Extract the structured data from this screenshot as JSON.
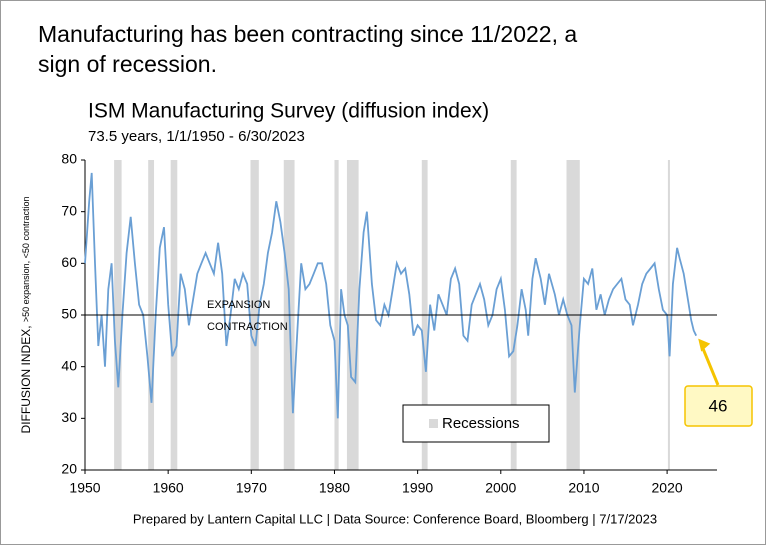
{
  "chart_data": {
    "type": "line",
    "headline": "Manufacturing has been contracting since 11/2022, a sign of recession.",
    "title": "ISM Manufacturing Survey (diffusion index)",
    "subtitle": "73.5 years, 1/1/1950 - 6/30/2023",
    "ylabel": "DIFFUSION INDEX, ",
    "ylabel_note": ">50 expansion, <50 contraction",
    "source": "Prepared by Lantern Capital LLC | Data Source: Conference Board, Bloomberg | 7/17/2023",
    "xlim": [
      1950,
      2026
    ],
    "xticks": [
      1950,
      1960,
      1970,
      1980,
      1990,
      2000,
      2010,
      2020
    ],
    "ylim": [
      20,
      80
    ],
    "yticks": [
      20,
      30,
      40,
      50,
      60,
      70,
      80
    ],
    "reference_line": 50,
    "upper_label": "EXPANSION",
    "lower_label": "CONTRACTION",
    "recession_label": "Recessions",
    "recession_color": "#d9d9d9",
    "recessions": [
      [
        1953.5,
        1954.4
      ],
      [
        1957.6,
        1958.3
      ],
      [
        1960.3,
        1961.1
      ],
      [
        1969.9,
        1970.9
      ],
      [
        1973.9,
        1975.2
      ],
      [
        1980.0,
        1980.5
      ],
      [
        1981.5,
        1982.9
      ],
      [
        1990.5,
        1991.2
      ],
      [
        2001.2,
        2001.9
      ],
      [
        2007.9,
        2009.5
      ],
      [
        2020.1,
        2020.3
      ]
    ],
    "callout": 46,
    "series": [
      {
        "color": "#6a9fd4",
        "x": [
          1950.0,
          1950.5,
          1950.8,
          1951.2,
          1951.6,
          1952.0,
          1952.4,
          1952.8,
          1953.2,
          1953.6,
          1954.0,
          1954.5,
          1955.0,
          1955.5,
          1956.0,
          1956.5,
          1957.0,
          1957.5,
          1958.0,
          1958.5,
          1959.0,
          1959.5,
          1960.0,
          1960.5,
          1961.0,
          1961.5,
          1962.0,
          1962.5,
          1963.0,
          1963.5,
          1964.0,
          1964.5,
          1965.0,
          1965.5,
          1966.0,
          1966.5,
          1967.0,
          1967.5,
          1968.0,
          1968.5,
          1969.0,
          1969.5,
          1970.0,
          1970.5,
          1971.0,
          1971.5,
          1972.0,
          1972.5,
          1973.0,
          1973.5,
          1974.0,
          1974.5,
          1975.0,
          1975.5,
          1976.0,
          1976.5,
          1977.0,
          1977.5,
          1978.0,
          1978.5,
          1979.0,
          1979.5,
          1980.0,
          1980.4,
          1980.8,
          1981.2,
          1981.6,
          1982.0,
          1982.5,
          1983.0,
          1983.5,
          1983.9,
          1984.5,
          1985.0,
          1985.5,
          1986.0,
          1986.5,
          1987.0,
          1987.5,
          1988.0,
          1988.5,
          1989.0,
          1989.5,
          1990.0,
          1990.5,
          1991.0,
          1991.5,
          1992.0,
          1992.5,
          1993.0,
          1993.5,
          1994.0,
          1994.5,
          1995.0,
          1995.5,
          1996.0,
          1996.5,
          1997.0,
          1997.5,
          1998.0,
          1998.5,
          1999.0,
          1999.5,
          2000.0,
          2000.5,
          2001.0,
          2001.5,
          2002.0,
          2002.5,
          2003.0,
          2003.3,
          2003.8,
          2004.2,
          2004.8,
          2005.3,
          2005.8,
          2006.5,
          2007.0,
          2007.5,
          2008.0,
          2008.5,
          2008.9,
          2009.5,
          2010.0,
          2010.5,
          2011.0,
          2011.5,
          2012.0,
          2012.5,
          2013.0,
          2013.5,
          2014.0,
          2014.5,
          2015.0,
          2015.5,
          2015.9,
          2016.5,
          2017.0,
          2017.5,
          2018.0,
          2018.5,
          2019.0,
          2019.5,
          2020.0,
          2020.3,
          2020.7,
          2021.2,
          2021.5,
          2022.0,
          2022.5,
          2022.9,
          2023.2,
          2023.5
        ],
        "values": [
          60,
          72,
          77.5,
          60,
          44,
          50,
          40,
          55,
          60,
          45,
          36,
          50,
          62,
          69,
          60,
          52,
          50,
          42,
          33,
          50,
          63,
          67,
          52,
          42,
          44,
          58,
          55,
          48,
          53,
          58,
          60,
          62,
          60,
          58,
          64,
          58,
          44,
          50,
          57,
          55,
          58,
          56,
          46,
          44,
          52,
          56,
          62,
          66,
          72,
          68,
          62,
          55,
          31,
          46,
          60,
          55,
          56,
          58,
          60,
          60,
          56,
          48,
          45,
          30,
          55,
          50,
          48,
          38,
          37,
          55,
          66,
          70,
          56,
          49,
          48,
          52,
          50,
          55,
          60,
          58,
          59,
          54,
          46,
          48,
          47,
          39,
          52,
          47,
          54,
          52,
          50,
          57,
          59,
          56,
          46,
          45,
          52,
          54,
          56,
          53,
          48,
          50,
          55,
          57,
          51,
          42,
          43,
          48,
          55,
          51,
          46,
          57,
          61,
          57,
          52,
          58,
          54,
          50,
          53,
          50,
          48,
          35,
          48,
          57,
          56,
          59,
          51,
          54,
          50,
          53,
          55,
          56,
          57,
          53,
          52,
          48,
          52,
          56,
          58,
          59,
          60,
          55,
          51,
          50,
          42,
          56,
          63,
          61,
          58,
          53,
          49,
          47,
          46
        ]
      }
    ]
  }
}
